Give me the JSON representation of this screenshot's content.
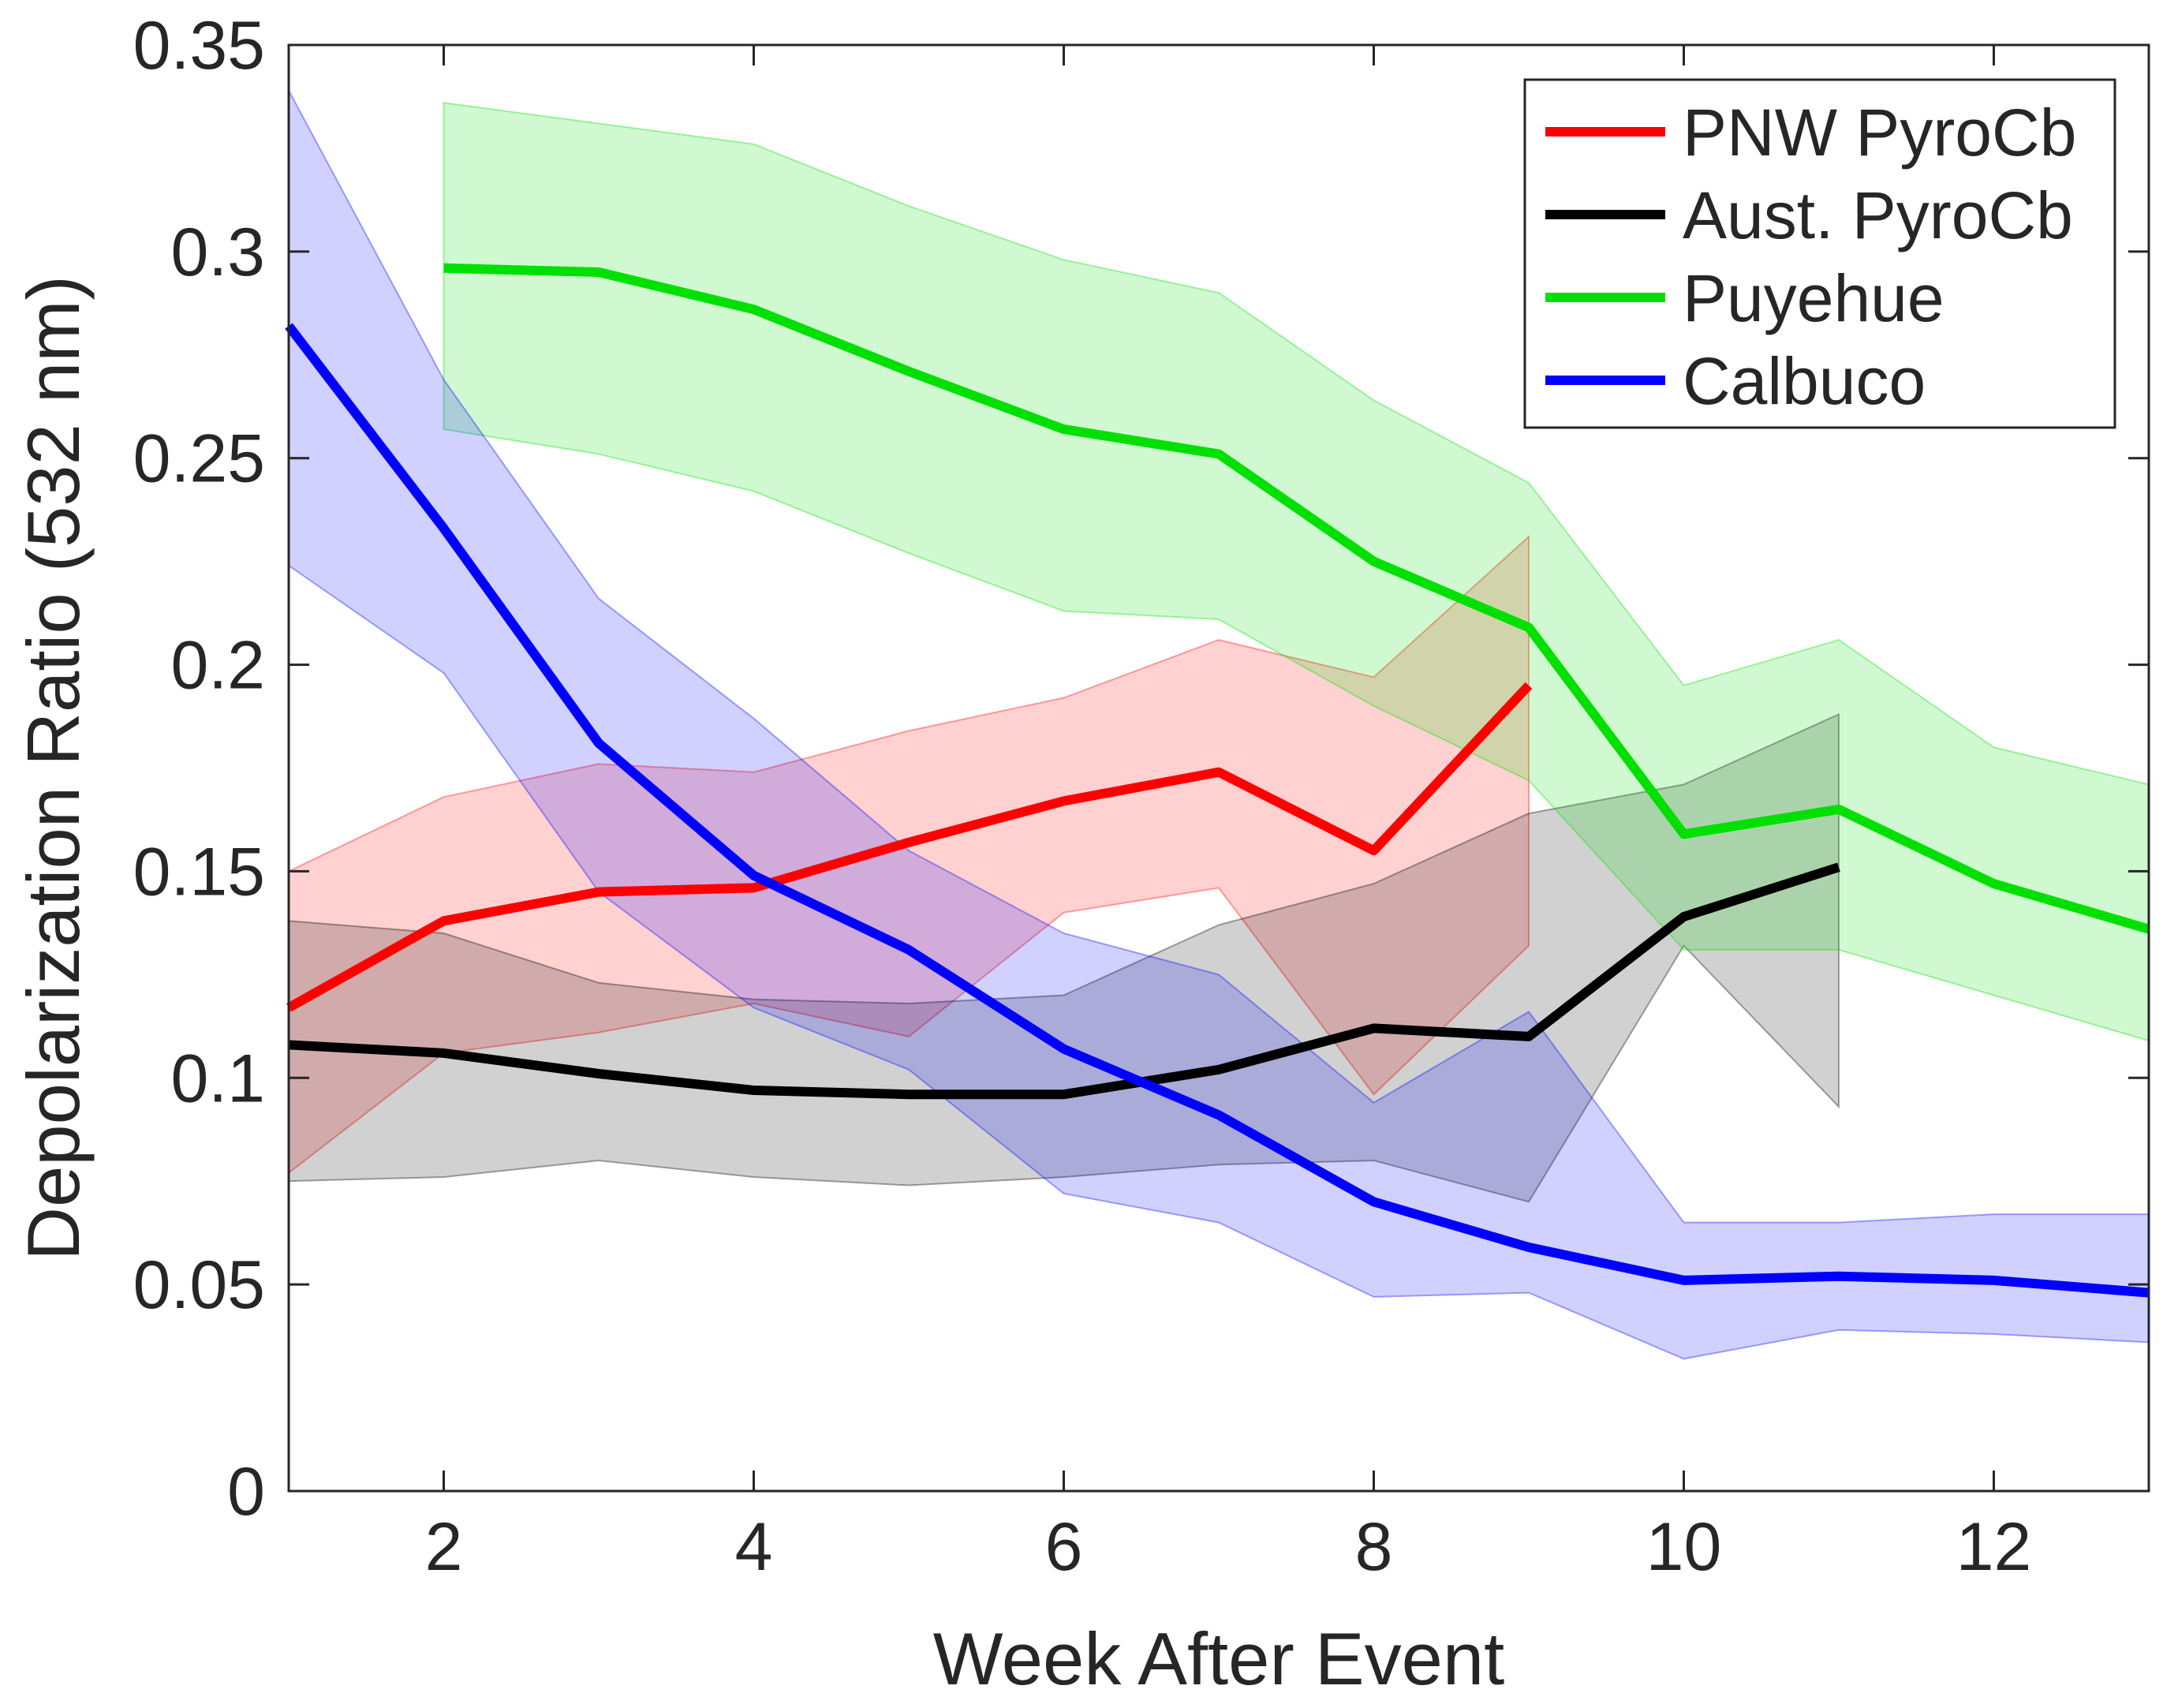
{
  "chart_data": {
    "type": "line",
    "title": "",
    "xlabel": "Week After Event",
    "ylabel": "Depolarization Ratio (532 nm)",
    "xlim": [
      1,
      13
    ],
    "ylim": [
      0,
      0.35
    ],
    "xticks": [
      2,
      4,
      6,
      8,
      10,
      12
    ],
    "xtick_labels": [
      "2",
      "4",
      "6",
      "8",
      "10",
      "12"
    ],
    "yticks": [
      0,
      0.05,
      0.1,
      0.15,
      0.2,
      0.25,
      0.3,
      0.35
    ],
    "ytick_labels": [
      "0",
      "0.05",
      "0.1",
      "0.15",
      "0.2",
      "0.25",
      "0.3",
      "0.35"
    ],
    "grid": false,
    "legend_position": "top-right",
    "series": [
      {
        "name": "PNW PyroCb",
        "color": "#ff0000",
        "x": [
          1,
          2,
          3,
          4,
          5,
          6,
          7,
          8,
          9
        ],
        "y": [
          0.117,
          0.138,
          0.145,
          0.146,
          0.157,
          0.167,
          0.174,
          0.155,
          0.195
        ],
        "upper": [
          0.15,
          0.168,
          0.176,
          0.174,
          0.184,
          0.192,
          0.206,
          0.197,
          0.231
        ],
        "lower": [
          0.077,
          0.106,
          0.111,
          0.118,
          0.11,
          0.14,
          0.146,
          0.096,
          0.132
        ]
      },
      {
        "name": "Aust. PyroCb",
        "color": "#000000",
        "x": [
          1,
          2,
          3,
          4,
          5,
          6,
          7,
          8,
          9,
          10,
          11
        ],
        "y": [
          0.108,
          0.106,
          0.101,
          0.097,
          0.096,
          0.096,
          0.102,
          0.112,
          0.11,
          0.139,
          0.151
        ],
        "upper": [
          0.138,
          0.135,
          0.123,
          0.119,
          0.118,
          0.12,
          0.137,
          0.147,
          0.164,
          0.171,
          0.188
        ],
        "lower": [
          0.075,
          0.076,
          0.08,
          0.076,
          0.074,
          0.076,
          0.079,
          0.08,
          0.07,
          0.132,
          0.093
        ]
      },
      {
        "name": "Puyehue",
        "color": "#00e000",
        "x": [
          2,
          3,
          4,
          5,
          6,
          7,
          8,
          9,
          10,
          11,
          12,
          13
        ],
        "y": [
          0.296,
          0.295,
          0.286,
          0.271,
          0.257,
          0.251,
          0.225,
          0.209,
          0.159,
          0.165,
          0.147,
          0.136
        ],
        "upper": [
          0.336,
          0.331,
          0.326,
          0.311,
          0.298,
          0.29,
          0.264,
          0.244,
          0.195,
          0.206,
          0.18,
          0.171
        ],
        "lower": [
          0.257,
          0.251,
          0.242,
          0.227,
          0.213,
          0.211,
          0.19,
          0.172,
          0.131,
          0.131,
          0.12,
          0.109
        ]
      },
      {
        "name": "Calbuco",
        "color": "#0000ff",
        "x": [
          1,
          2,
          3,
          4,
          5,
          6,
          7,
          8,
          9,
          10,
          11,
          12,
          13
        ],
        "y": [
          0.282,
          0.233,
          0.181,
          0.149,
          0.131,
          0.107,
          0.091,
          0.07,
          0.059,
          0.051,
          0.052,
          0.051,
          0.048
        ],
        "upper": [
          0.339,
          0.269,
          0.216,
          0.187,
          0.155,
          0.135,
          0.125,
          0.094,
          0.116,
          0.065,
          0.065,
          0.067,
          0.067
        ],
        "lower": [
          0.224,
          0.198,
          0.145,
          0.117,
          0.102,
          0.072,
          0.065,
          0.047,
          0.048,
          0.032,
          0.039,
          0.038,
          0.036
        ]
      }
    ]
  }
}
